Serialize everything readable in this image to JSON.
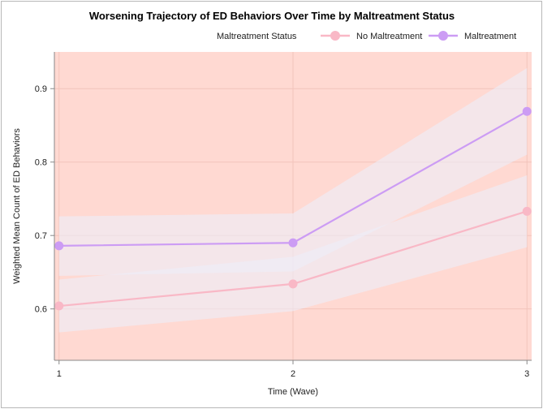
{
  "chart_data": {
    "type": "line",
    "title": "Worsening Trajectory of ED Behaviors Over Time by Maltreatment Status",
    "xlabel": "Time (Wave)",
    "ylabel": "Weighted Mean Count of ED Behaviors",
    "x": [
      1,
      2,
      3
    ],
    "x_tick_labels": [
      "1",
      "2",
      "3"
    ],
    "xlim": [
      0.98,
      3.02
    ],
    "ylim": [
      0.53,
      0.95
    ],
    "y_ticks": [
      0.6,
      0.7,
      0.8,
      0.9
    ],
    "y_tick_labels": [
      "0.6",
      "0.7",
      "0.8",
      "0.9"
    ],
    "legend": {
      "title": "Maltreatment Status",
      "placement": "top-right"
    },
    "background_color": "#ffd9d2",
    "series": [
      {
        "name": "No Maltreatment",
        "color": "#f9b8c6",
        "values": [
          0.604,
          0.634,
          0.733
        ],
        "ci_lower": [
          0.568,
          0.597,
          0.684
        ],
        "ci_upper": [
          0.64,
          0.671,
          0.782
        ]
      },
      {
        "name": "Maltreatment",
        "color": "#cc9cf4",
        "values": [
          0.686,
          0.69,
          0.869
        ],
        "ci_lower": [
          0.645,
          0.651,
          0.81
        ],
        "ci_upper": [
          0.726,
          0.73,
          0.928
        ]
      }
    ]
  }
}
